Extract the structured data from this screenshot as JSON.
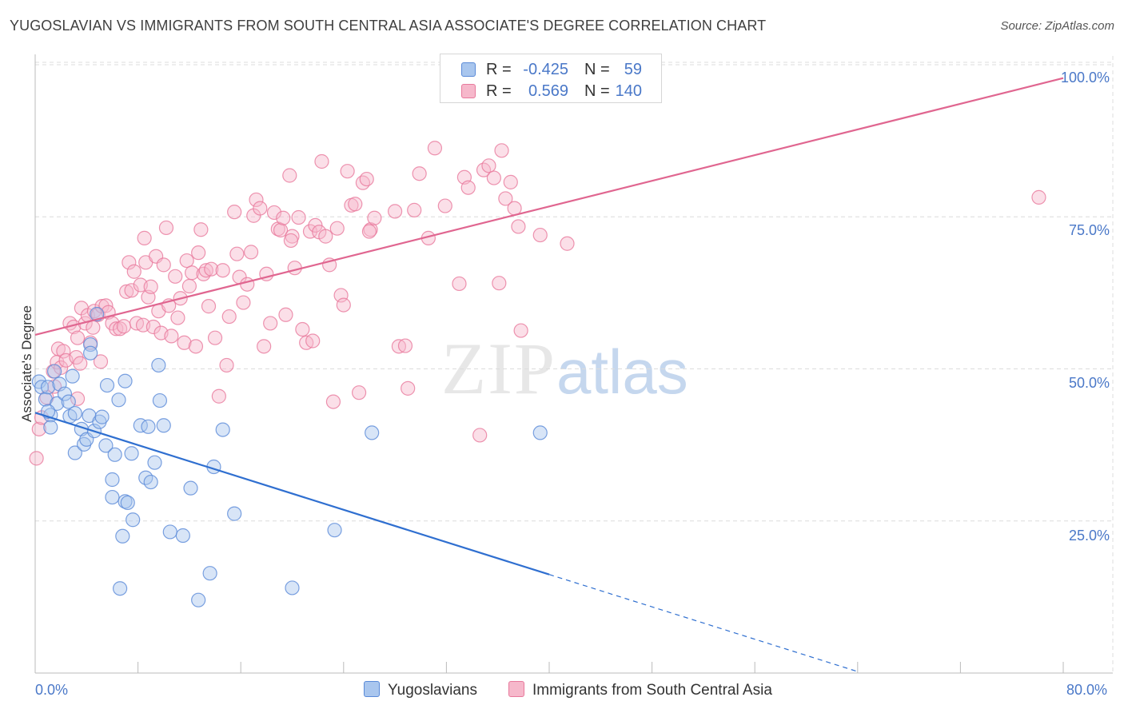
{
  "title": "YUGOSLAVIAN VS IMMIGRANTS FROM SOUTH CENTRAL ASIA ASSOCIATE'S DEGREE CORRELATION CHART",
  "source": "Source: ZipAtlas.com",
  "watermark": {
    "zip": "ZIP",
    "atlas": "atlas"
  },
  "legend_top": {
    "rows": [
      {
        "r_label": "R =",
        "r_value": "-0.425",
        "n_label": "N =",
        "n_value": "59"
      },
      {
        "r_label": "R =",
        "r_value": "0.569",
        "n_label": "N =",
        "n_value": "140"
      }
    ]
  },
  "legend_bottom": {
    "items": [
      "Yugoslavians",
      "Immigrants from South Central Asia"
    ]
  },
  "colors": {
    "blue_fill": "#a9c6ee",
    "blue_stroke": "#5a8ad8",
    "blue_line": "#2f6fd0",
    "pink_fill": "#f6b8cb",
    "pink_stroke": "#e8799c",
    "pink_line": "#e06690",
    "axis_text": "#4a78c8",
    "grid": "#dcdcdc"
  },
  "chart_data": {
    "type": "scatter",
    "title": "YUGOSLAVIAN VS IMMIGRANTS FROM SOUTH CENTRAL ASIA ASSOCIATE'S DEGREE CORRELATION CHART",
    "xlabel": "",
    "ylabel": "Associate's Degree",
    "xlim": [
      0,
      80
    ],
    "ylim": [
      0,
      100
    ],
    "x_tick_labels": [
      "0.0%",
      "80.0%"
    ],
    "y_tick_labels": [
      "25.0%",
      "50.0%",
      "75.0%",
      "100.0%"
    ],
    "y_ticks": [
      25,
      50,
      75,
      100
    ],
    "grid": true,
    "legend": "bottom",
    "series": [
      {
        "name": "Yugoslavians",
        "r": -0.425,
        "n": 59,
        "trend": {
          "x0": 0,
          "y0": 42.8,
          "x1": 40,
          "y1": 16.2,
          "dashed_to_x": 64
        },
        "points": [
          [
            0.3,
            47.9
          ],
          [
            0.5,
            47.0
          ],
          [
            0.8,
            45.0
          ],
          [
            1.0,
            47.0
          ],
          [
            1.2,
            42.4
          ],
          [
            1.2,
            40.4
          ],
          [
            1.5,
            49.6
          ],
          [
            1.7,
            44.3
          ],
          [
            1.9,
            47.5
          ],
          [
            2.3,
            45.9
          ],
          [
            2.6,
            44.6
          ],
          [
            2.7,
            42.2
          ],
          [
            2.9,
            48.8
          ],
          [
            3.1,
            42.7
          ],
          [
            3.1,
            36.2
          ],
          [
            3.6,
            40.1
          ],
          [
            3.8,
            37.6
          ],
          [
            4.0,
            38.4
          ],
          [
            4.2,
            42.3
          ],
          [
            4.3,
            54.0
          ],
          [
            4.3,
            52.6
          ],
          [
            4.6,
            39.8
          ],
          [
            4.8,
            59.0
          ],
          [
            5.0,
            41.3
          ],
          [
            5.2,
            42.1
          ],
          [
            5.5,
            37.4
          ],
          [
            5.6,
            47.3
          ],
          [
            6.0,
            31.8
          ],
          [
            6.0,
            28.9
          ],
          [
            6.2,
            35.9
          ],
          [
            6.5,
            44.9
          ],
          [
            6.6,
            13.9
          ],
          [
            6.8,
            22.5
          ],
          [
            7.0,
            28.2
          ],
          [
            7.2,
            28.0
          ],
          [
            7.5,
            36.1
          ],
          [
            7.6,
            25.2
          ],
          [
            8.2,
            40.7
          ],
          [
            8.6,
            32.1
          ],
          [
            8.8,
            40.5
          ],
          [
            9.0,
            31.4
          ],
          [
            9.3,
            34.6
          ],
          [
            9.6,
            50.6
          ],
          [
            9.7,
            44.8
          ],
          [
            10.0,
            40.7
          ],
          [
            10.5,
            23.2
          ],
          [
            11.5,
            22.6
          ],
          [
            12.1,
            30.4
          ],
          [
            12.7,
            12.0
          ],
          [
            13.6,
            16.4
          ],
          [
            13.9,
            33.9
          ],
          [
            14.6,
            40.0
          ],
          [
            15.5,
            26.2
          ],
          [
            20.0,
            14.0
          ],
          [
            23.3,
            23.5
          ],
          [
            26.2,
            39.5
          ],
          [
            39.3,
            39.5
          ],
          [
            7.0,
            48.0
          ],
          [
            1.0,
            43.0
          ]
        ]
      },
      {
        "name": "Immigrants from South Central Asia",
        "r": 0.569,
        "n": 140,
        "trend": {
          "x0": 0,
          "y0": 55.6,
          "x1": 80,
          "y1": 97.8
        },
        "points": [
          [
            0.1,
            35.3
          ],
          [
            0.3,
            40.1
          ],
          [
            0.5,
            42.0
          ],
          [
            0.9,
            45.3
          ],
          [
            1.4,
            49.6
          ],
          [
            1.5,
            47.1
          ],
          [
            1.7,
            51.1
          ],
          [
            1.8,
            53.3
          ],
          [
            2.0,
            50.2
          ],
          [
            2.2,
            52.9
          ],
          [
            2.4,
            51.4
          ],
          [
            2.7,
            57.5
          ],
          [
            3.0,
            56.9
          ],
          [
            3.2,
            51.9
          ],
          [
            3.3,
            55.1
          ],
          [
            3.5,
            50.9
          ],
          [
            3.6,
            60.0
          ],
          [
            3.9,
            57.5
          ],
          [
            4.1,
            58.8
          ],
          [
            4.3,
            54.3
          ],
          [
            4.5,
            56.8
          ],
          [
            4.6,
            59.5
          ],
          [
            4.9,
            58.9
          ],
          [
            5.1,
            51.2
          ],
          [
            5.2,
            60.3
          ],
          [
            5.5,
            60.4
          ],
          [
            5.7,
            59.3
          ],
          [
            6.0,
            57.5
          ],
          [
            6.3,
            56.6
          ],
          [
            6.6,
            56.6
          ],
          [
            6.9,
            57.0
          ],
          [
            7.1,
            62.7
          ],
          [
            7.3,
            67.5
          ],
          [
            7.5,
            62.9
          ],
          [
            7.7,
            66.0
          ],
          [
            7.9,
            57.5
          ],
          [
            8.2,
            63.8
          ],
          [
            8.4,
            57.2
          ],
          [
            8.6,
            67.5
          ],
          [
            8.8,
            61.8
          ],
          [
            9.0,
            63.5
          ],
          [
            9.2,
            56.9
          ],
          [
            9.4,
            68.5
          ],
          [
            9.6,
            59.5
          ],
          [
            9.8,
            55.9
          ],
          [
            10.0,
            67.1
          ],
          [
            10.2,
            73.2
          ],
          [
            10.4,
            60.4
          ],
          [
            10.6,
            55.4
          ],
          [
            10.9,
            65.2
          ],
          [
            11.1,
            58.4
          ],
          [
            11.3,
            61.6
          ],
          [
            11.6,
            54.3
          ],
          [
            11.8,
            67.8
          ],
          [
            12.0,
            63.6
          ],
          [
            12.2,
            65.8
          ],
          [
            12.5,
            53.7
          ],
          [
            12.7,
            69.1
          ],
          [
            12.9,
            72.9
          ],
          [
            13.1,
            65.6
          ],
          [
            13.3,
            66.2
          ],
          [
            13.5,
            60.3
          ],
          [
            13.7,
            66.4
          ],
          [
            14.0,
            55.1
          ],
          [
            14.3,
            45.5
          ],
          [
            14.6,
            66.2
          ],
          [
            14.9,
            50.6
          ],
          [
            15.1,
            58.6
          ],
          [
            15.5,
            75.8
          ],
          [
            15.7,
            68.9
          ],
          [
            15.9,
            65.1
          ],
          [
            16.2,
            60.9
          ],
          [
            16.5,
            63.9
          ],
          [
            16.8,
            69.2
          ],
          [
            17.0,
            75.2
          ],
          [
            17.2,
            77.8
          ],
          [
            17.5,
            76.4
          ],
          [
            17.8,
            53.7
          ],
          [
            18.0,
            65.6
          ],
          [
            18.3,
            57.5
          ],
          [
            18.6,
            75.7
          ],
          [
            18.9,
            73.0
          ],
          [
            19.1,
            72.8
          ],
          [
            19.3,
            74.8
          ],
          [
            19.5,
            58.9
          ],
          [
            19.8,
            81.8
          ],
          [
            20.0,
            71.8
          ],
          [
            20.2,
            66.6
          ],
          [
            20.5,
            74.9
          ],
          [
            20.8,
            56.5
          ],
          [
            21.1,
            54.3
          ],
          [
            21.4,
            72.6
          ],
          [
            21.6,
            54.6
          ],
          [
            21.8,
            73.6
          ],
          [
            22.1,
            72.5
          ],
          [
            22.3,
            84.1
          ],
          [
            22.6,
            71.8
          ],
          [
            22.9,
            67.1
          ],
          [
            23.2,
            44.6
          ],
          [
            23.5,
            73.1
          ],
          [
            23.8,
            62.1
          ],
          [
            24.0,
            60.5
          ],
          [
            24.3,
            82.5
          ],
          [
            24.6,
            76.9
          ],
          [
            24.9,
            77.1
          ],
          [
            25.2,
            46.1
          ],
          [
            25.5,
            80.6
          ],
          [
            25.8,
            81.2
          ],
          [
            26.1,
            72.9
          ],
          [
            26.4,
            74.8
          ],
          [
            28.0,
            75.9
          ],
          [
            28.3,
            53.7
          ],
          [
            28.8,
            53.8
          ],
          [
            29.0,
            46.8
          ],
          [
            29.5,
            76.1
          ],
          [
            29.9,
            82.1
          ],
          [
            30.6,
            71.5
          ],
          [
            31.1,
            86.3
          ],
          [
            31.9,
            76.8
          ],
          [
            33.0,
            64.0
          ],
          [
            33.4,
            81.5
          ],
          [
            33.7,
            79.8
          ],
          [
            34.6,
            39.1
          ],
          [
            34.9,
            82.7
          ],
          [
            35.3,
            83.4
          ],
          [
            35.7,
            81.4
          ],
          [
            36.1,
            64.1
          ],
          [
            36.3,
            85.9
          ],
          [
            36.6,
            78.0
          ],
          [
            37.0,
            80.7
          ],
          [
            37.3,
            76.4
          ],
          [
            37.6,
            73.4
          ],
          [
            37.8,
            56.3
          ],
          [
            39.3,
            72.0
          ],
          [
            41.4,
            70.6
          ],
          [
            78.1,
            78.2
          ],
          [
            3.3,
            45.1
          ],
          [
            8.5,
            71.5
          ],
          [
            26.0,
            72.6
          ],
          [
            19.9,
            71.1
          ]
        ]
      }
    ]
  }
}
